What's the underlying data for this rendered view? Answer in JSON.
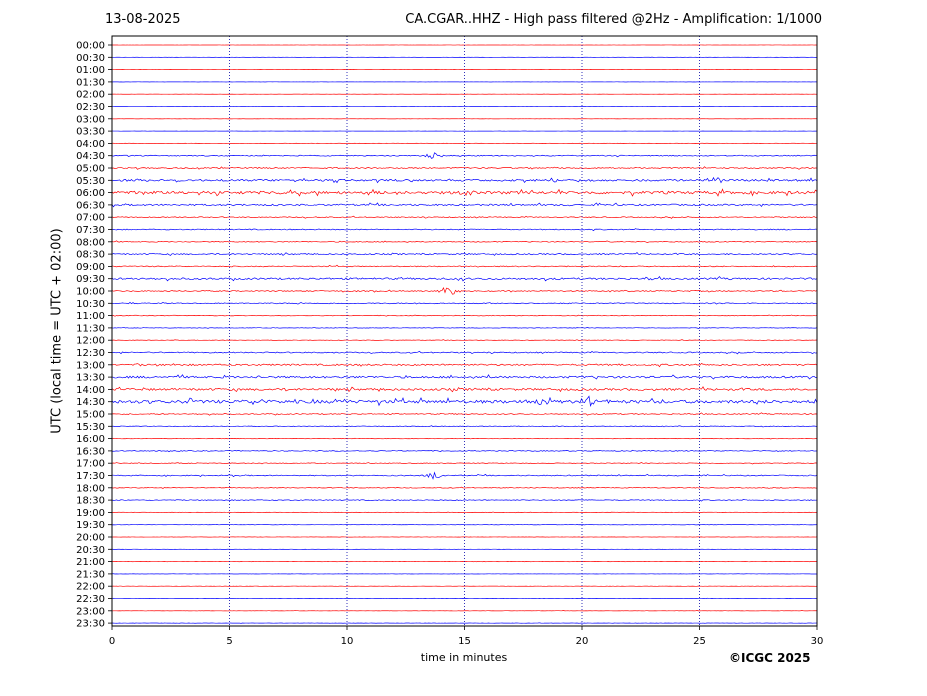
{
  "header": {
    "date": "13-08-2025",
    "title": "CA.CGAR..HHZ - High pass filtered @2Hz - Amplification: 1/1000"
  },
  "footer": {
    "copyright": "©ICGC 2025"
  },
  "colors": {
    "red": "#ff0000",
    "blue": "#0000ff",
    "grid": "#0000aa"
  },
  "chart_data": {
    "type": "line",
    "title": "CA.CGAR..HHZ - High pass filtered @2Hz - Amplification: 1/1000",
    "xlabel": "time in minutes",
    "ylabel": "UTC (local time = UTC + 02:00)",
    "xlim": [
      0,
      30
    ],
    "xticks": [
      0,
      5,
      10,
      15,
      20,
      25,
      30
    ],
    "grid": "vertical dotted lines at x ticks",
    "row_labels": [
      "00:00",
      "00:30",
      "01:00",
      "01:30",
      "02:00",
      "02:30",
      "03:00",
      "03:30",
      "04:00",
      "04:30",
      "05:00",
      "05:30",
      "06:00",
      "06:30",
      "07:00",
      "07:30",
      "08:00",
      "08:30",
      "09:00",
      "09:30",
      "10:00",
      "10:30",
      "11:00",
      "11:30",
      "12:00",
      "12:30",
      "13:00",
      "13:30",
      "14:00",
      "14:30",
      "15:00",
      "15:30",
      "16:00",
      "16:30",
      "17:00",
      "17:30",
      "18:00",
      "18:30",
      "19:00",
      "19:30",
      "20:00",
      "20:30",
      "21:00",
      "21:30",
      "22:00",
      "22:30",
      "23:00",
      "23:30"
    ],
    "row_colors": "alternating red (first) and blue",
    "activity_level": [
      0.05,
      0.05,
      0.05,
      0.05,
      0.05,
      0.05,
      0.05,
      0.05,
      0.1,
      0.3,
      0.35,
      0.6,
      0.85,
      0.5,
      0.3,
      0.3,
      0.25,
      0.4,
      0.3,
      0.55,
      0.3,
      0.3,
      0.2,
      0.15,
      0.15,
      0.35,
      0.5,
      0.6,
      0.65,
      0.95,
      0.3,
      0.2,
      0.15,
      0.25,
      0.2,
      0.3,
      0.2,
      0.25,
      0.15,
      0.1,
      0.08,
      0.08,
      0.08,
      0.08,
      0.08,
      0.08,
      0.08,
      0.08
    ],
    "events": [
      {
        "row": "10:00",
        "minute": 14.3,
        "amplitude": 0.9
      },
      {
        "row": "05:30",
        "minute": 25.7,
        "amplitude": 0.7
      },
      {
        "row": "14:30",
        "minute": 20.3,
        "amplitude": 0.9
      },
      {
        "row": "14:30",
        "minute": 18.3,
        "amplitude": 0.8
      },
      {
        "row": "04:30",
        "minute": 13.7,
        "amplitude": 0.5
      },
      {
        "row": "17:30",
        "minute": 13.7,
        "amplitude": 0.6
      },
      {
        "row": "06:00",
        "minute": 15.0,
        "amplitude": 0.5
      }
    ]
  }
}
